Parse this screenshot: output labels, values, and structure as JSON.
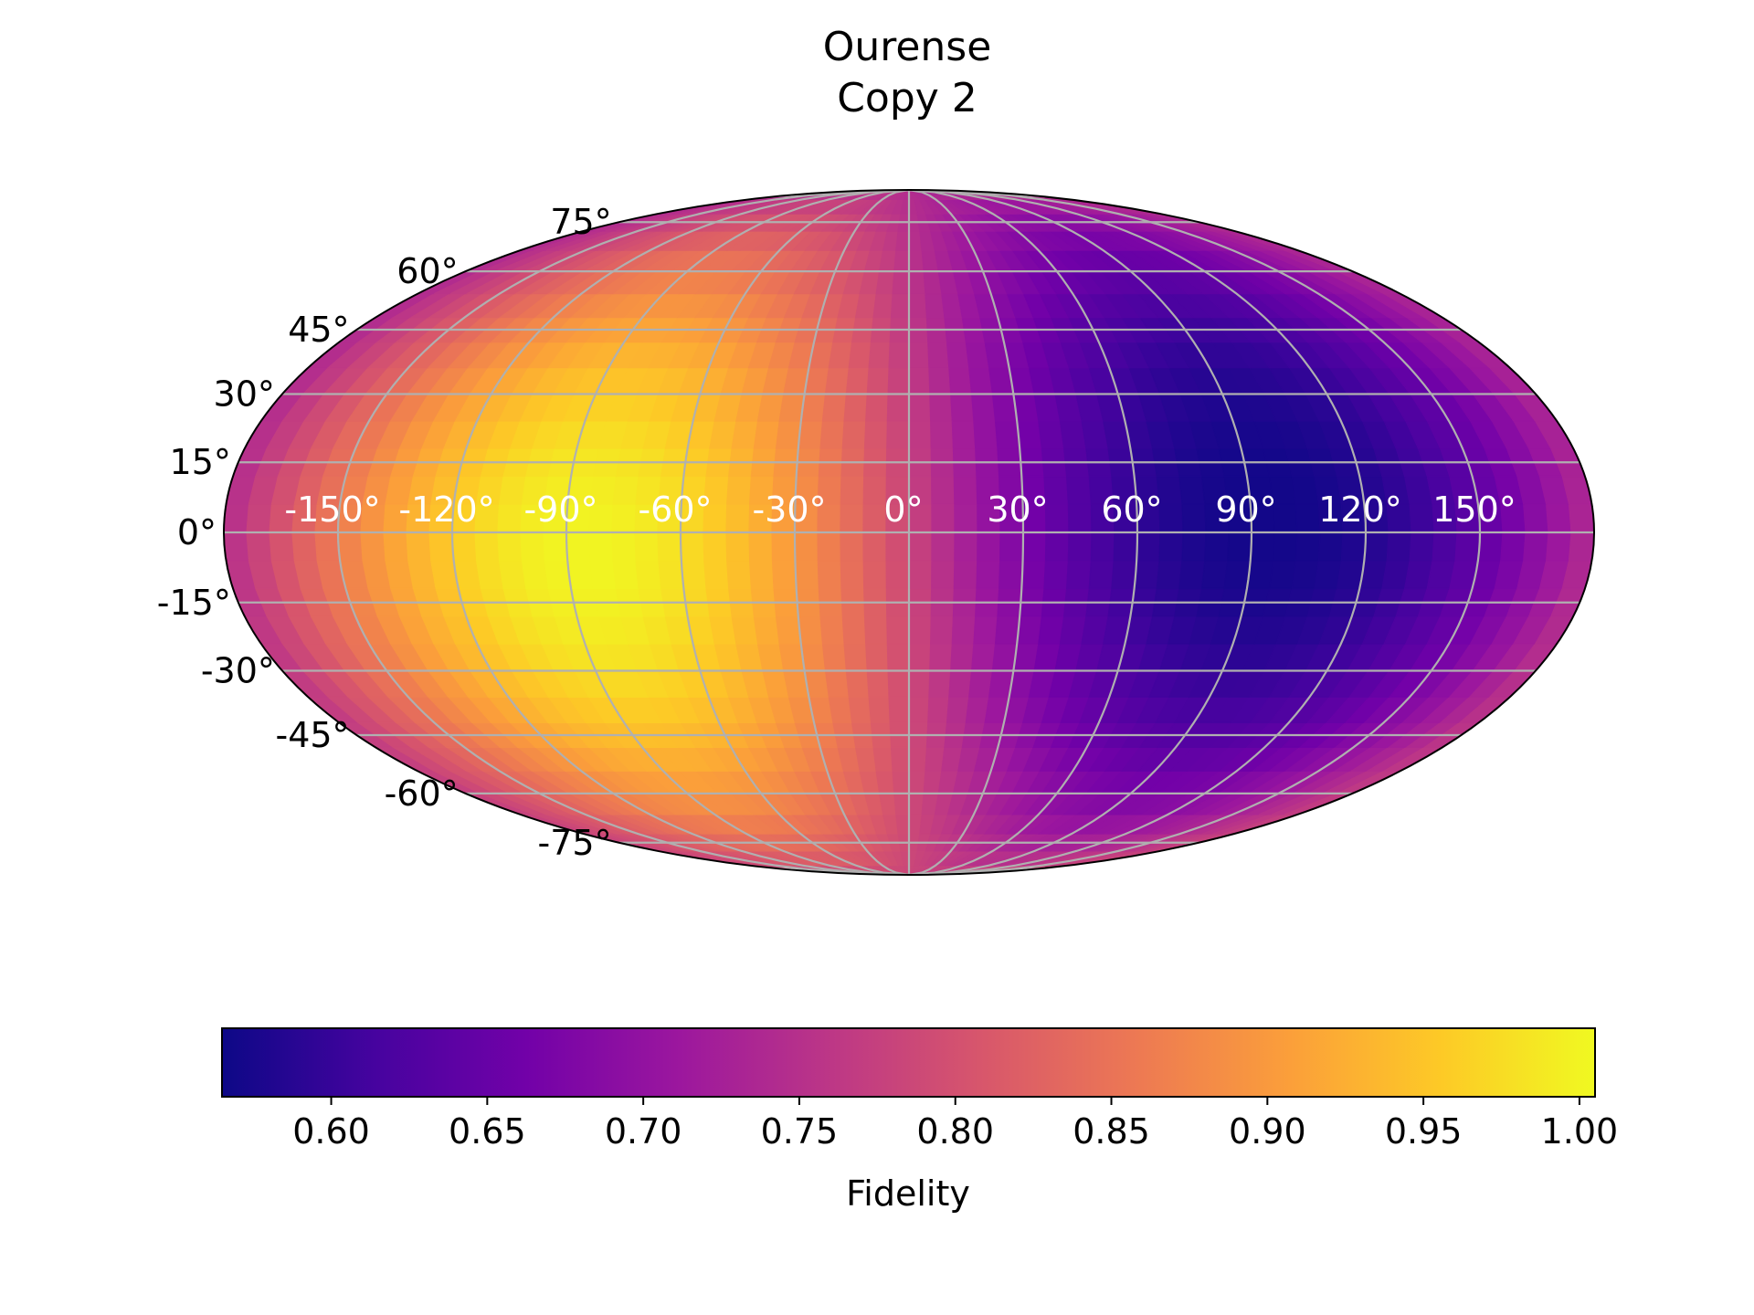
{
  "chart_data": {
    "type": "heatmap",
    "projection": "mollweide",
    "title_lines": [
      "Ourense",
      "Copy 2"
    ],
    "colormap": "plasma",
    "colormap_stops": [
      "#0d0887",
      "#46039f",
      "#7201a8",
      "#9c179e",
      "#bd3786",
      "#d8576b",
      "#ed7953",
      "#fb9f3a",
      "#fdca26",
      "#f0f921"
    ],
    "color_range": [
      0.565,
      1.005
    ],
    "grid": true,
    "grid_color": "#b0b0b0",
    "latitude_ticks": [
      {
        "value": 75,
        "label": "75°"
      },
      {
        "value": 60,
        "label": "60°"
      },
      {
        "value": 45,
        "label": "45°"
      },
      {
        "value": 30,
        "label": "30°"
      },
      {
        "value": 15,
        "label": "15°"
      },
      {
        "value": 0,
        "label": "0°"
      },
      {
        "value": -15,
        "label": "-15°"
      },
      {
        "value": -30,
        "label": "-30°"
      },
      {
        "value": -45,
        "label": "-45°"
      },
      {
        "value": -60,
        "label": "-60°"
      },
      {
        "value": -75,
        "label": "-75°"
      }
    ],
    "longitude_ticks": [
      {
        "value": -150,
        "label": "-150°"
      },
      {
        "value": -120,
        "label": "-120°"
      },
      {
        "value": -90,
        "label": "-90°"
      },
      {
        "value": -60,
        "label": "-60°"
      },
      {
        "value": -30,
        "label": "-30°"
      },
      {
        "value": 0,
        "label": "0°"
      },
      {
        "value": 30,
        "label": "30°"
      },
      {
        "value": 60,
        "label": "60°"
      },
      {
        "value": 90,
        "label": "90°"
      },
      {
        "value": 120,
        "label": "120°"
      },
      {
        "value": 150,
        "label": "150°"
      }
    ],
    "field": {
      "max_value": 1.0,
      "max_location": {
        "lon": -85,
        "lat": 0
      },
      "min_value": 0.57,
      "min_location": {
        "lon": 95,
        "lat": 10
      },
      "polar_value": 0.86
    },
    "colorbar": {
      "label": "Fidelity",
      "orientation": "horizontal",
      "ticks": [
        {
          "value": 0.6,
          "label": "0.60"
        },
        {
          "value": 0.65,
          "label": "0.65"
        },
        {
          "value": 0.7,
          "label": "0.70"
        },
        {
          "value": 0.75,
          "label": "0.75"
        },
        {
          "value": 0.8,
          "label": "0.80"
        },
        {
          "value": 0.85,
          "label": "0.85"
        },
        {
          "value": 0.9,
          "label": "0.90"
        },
        {
          "value": 0.95,
          "label": "0.95"
        },
        {
          "value": 1.0,
          "label": "1.00"
        }
      ]
    }
  }
}
